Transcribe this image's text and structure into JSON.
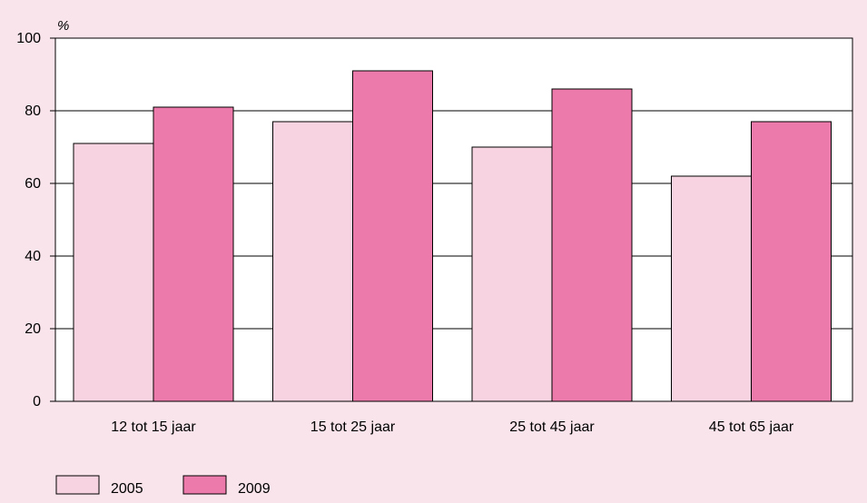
{
  "chart_data": {
    "type": "bar",
    "title": "",
    "xlabel": "",
    "ylabel": "",
    "unit_label": "%",
    "categories": [
      "12 tot 15 jaar",
      "15 tot 25 jaar",
      "25 tot 45 jaar",
      "45 tot 65 jaar"
    ],
    "series": [
      {
        "name": "2005",
        "values": [
          71,
          77,
          70,
          62
        ],
        "color": "#f7d3e2"
      },
      {
        "name": "2009",
        "values": [
          81,
          91,
          86,
          77
        ],
        "color": "#ec7aaa"
      }
    ],
    "ylim": [
      0,
      100
    ],
    "yticks": [
      0,
      20,
      40,
      60,
      80,
      100
    ],
    "grid": true,
    "legend_position": "bottom-left"
  }
}
